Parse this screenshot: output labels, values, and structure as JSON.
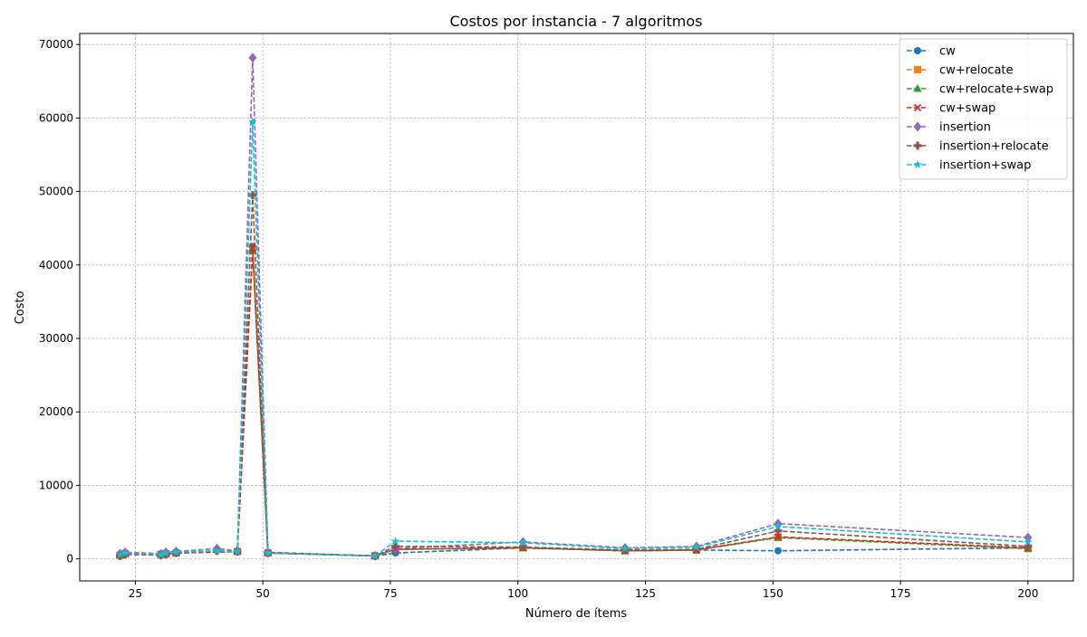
{
  "chart_data": {
    "type": "line",
    "title": "Costos por instancia - 7 algoritmos",
    "xlabel": "Número de ítems",
    "ylabel": "Costo",
    "xlim": [
      14.1,
      208.9
    ],
    "ylim": [
      -3000,
      71500
    ],
    "xticks": [
      25,
      50,
      75,
      100,
      125,
      150,
      175,
      200
    ],
    "yticks": [
      0,
      10000,
      20000,
      30000,
      40000,
      50000,
      60000,
      70000
    ],
    "grid": true,
    "legend_position": "top-right",
    "series": [
      {
        "name": "cw",
        "color": "#1f77b4",
        "marker": "circle",
        "x": [
          22,
          23,
          30,
          31,
          33,
          45,
          48,
          51,
          72,
          76,
          101,
          121,
          135,
          151,
          200
        ],
        "y": [
          500,
          700,
          600,
          700,
          800,
          1000,
          42500,
          800,
          400,
          800,
          1500,
          1100,
          1200,
          1100,
          1500
        ]
      },
      {
        "name": "cw+relocate",
        "color": "#ff7f0e",
        "marker": "square",
        "x": [
          22,
          23,
          30,
          31,
          33,
          45,
          48,
          51,
          72,
          76,
          101,
          121,
          135,
          151,
          200
        ],
        "y": [
          500,
          700,
          600,
          700,
          800,
          1000,
          42000,
          800,
          400,
          1300,
          1500,
          1100,
          1200,
          2900,
          1400
        ]
      },
      {
        "name": "cw+relocate+swap",
        "color": "#2ca02c",
        "marker": "triangle",
        "x": [
          22,
          23,
          30,
          31,
          33,
          45,
          48,
          51,
          72,
          76,
          101,
          121,
          135,
          151,
          200
        ],
        "y": [
          500,
          700,
          600,
          700,
          800,
          1000,
          42000,
          800,
          400,
          1300,
          1500,
          1100,
          1200,
          2900,
          1400
        ]
      },
      {
        "name": "cw+swap",
        "color": "#d62728",
        "marker": "x",
        "x": [
          22,
          23,
          30,
          31,
          33,
          45,
          48,
          51,
          72,
          76,
          101,
          121,
          135,
          151,
          200
        ],
        "y": [
          500,
          700,
          600,
          700,
          800,
          1000,
          42300,
          800,
          400,
          1300,
          1500,
          1100,
          1200,
          3000,
          1500
        ]
      },
      {
        "name": "insertion",
        "color": "#9467bd",
        "marker": "diamond",
        "x": [
          22,
          23,
          30,
          31,
          33,
          41,
          45,
          48,
          51,
          72,
          76,
          101,
          121,
          135,
          151,
          200
        ],
        "y": [
          700,
          900,
          700,
          900,
          1000,
          1400,
          1100,
          68200,
          900,
          400,
          1400,
          2300,
          1500,
          1700,
          4800,
          2900
        ]
      },
      {
        "name": "insertion+relocate",
        "color": "#8c564b",
        "marker": "plus",
        "x": [
          22,
          23,
          30,
          31,
          33,
          41,
          45,
          48,
          51,
          72,
          76,
          101,
          121,
          135,
          151,
          200
        ],
        "y": [
          400,
          600,
          500,
          600,
          800,
          1100,
          1000,
          49500,
          800,
          400,
          1700,
          1600,
          1200,
          1300,
          3800,
          1700
        ]
      },
      {
        "name": "insertion+swap",
        "color": "#17becf",
        "marker": "star",
        "x": [
          22,
          23,
          30,
          31,
          33,
          41,
          45,
          48,
          51,
          72,
          76,
          101,
          121,
          135,
          151,
          200
        ],
        "y": [
          600,
          800,
          600,
          800,
          900,
          1100,
          1000,
          59500,
          800,
          400,
          2400,
          2200,
          1400,
          1600,
          4400,
          2300
        ]
      }
    ]
  }
}
